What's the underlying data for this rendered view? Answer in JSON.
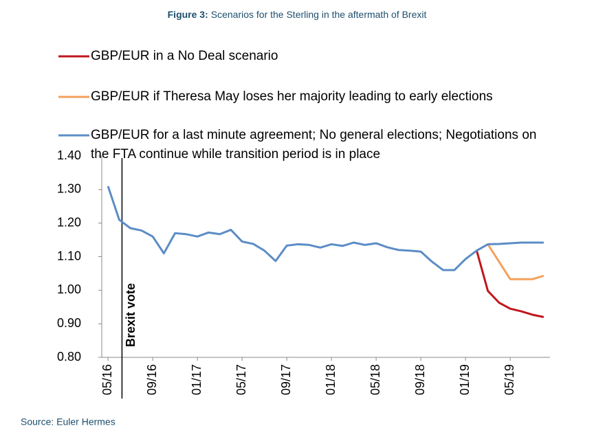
{
  "chart_data": {
    "type": "line",
    "title_prefix": "Figure 3:",
    "title": "Scenarios for the Sterling in the aftermath of Brexit",
    "source": "Source: Euler Hermes",
    "annotation": "Brexit vote",
    "annotation_at": "06/16",
    "categories": [
      "05/16",
      null,
      null,
      null,
      "09/16",
      null,
      null,
      null,
      "01/17",
      null,
      null,
      null,
      "05/17",
      null,
      null,
      null,
      "09/17",
      null,
      null,
      null,
      "01/18",
      null,
      null,
      null,
      "05/18",
      null,
      null,
      null,
      "09/18",
      null,
      null,
      null,
      "01/19",
      null,
      null,
      null,
      "05/19",
      null,
      null,
      null
    ],
    "ylim": [
      0.8,
      1.4
    ],
    "yticks": [
      {
        "value": 0.8,
        "label": "0.80"
      },
      {
        "value": 0.9,
        "label": "0.90"
      },
      {
        "value": 1.0,
        "label": "1.00"
      },
      {
        "value": 1.1,
        "label": "1.10"
      },
      {
        "value": 1.2,
        "label": "1.20"
      },
      {
        "value": 1.3,
        "label": "1.30"
      },
      {
        "value": 1.4,
        "label": "1.40"
      }
    ],
    "series": [
      {
        "name": "GBP/EUR in a No Deal scenario",
        "color": "#c0161c",
        "values": [
          null,
          null,
          null,
          null,
          null,
          null,
          null,
          null,
          null,
          null,
          null,
          null,
          null,
          null,
          null,
          null,
          null,
          null,
          null,
          null,
          null,
          null,
          null,
          null,
          null,
          null,
          null,
          null,
          null,
          null,
          null,
          null,
          null,
          1.118,
          0.998,
          0.963,
          0.945,
          0.937,
          0.927,
          0.92
        ]
      },
      {
        "name": "GBP/EUR if Theresa May loses her majority leading to early elections",
        "color": "#f4a15d",
        "values": [
          null,
          null,
          null,
          null,
          null,
          null,
          null,
          null,
          null,
          null,
          null,
          null,
          null,
          null,
          null,
          null,
          null,
          null,
          null,
          null,
          null,
          null,
          null,
          null,
          null,
          null,
          null,
          null,
          null,
          null,
          null,
          null,
          null,
          null,
          1.137,
          1.085,
          1.033,
          1.033,
          1.033,
          1.043
        ]
      },
      {
        "name": "GBP/EUR for a last minute agreement; No general elections; Negotiations on the FTA continue while transition period is in place",
        "color": "#5b8cc6",
        "values": [
          1.31,
          1.21,
          1.185,
          1.178,
          1.16,
          1.11,
          1.17,
          1.167,
          1.16,
          1.172,
          1.167,
          1.18,
          1.145,
          1.138,
          1.118,
          1.087,
          1.133,
          1.137,
          1.135,
          1.127,
          1.137,
          1.132,
          1.142,
          1.135,
          1.14,
          1.128,
          1.12,
          1.118,
          1.115,
          1.085,
          1.06,
          1.06,
          1.093,
          1.118,
          1.137,
          1.138,
          1.14,
          1.142,
          1.142,
          1.142
        ]
      }
    ]
  }
}
